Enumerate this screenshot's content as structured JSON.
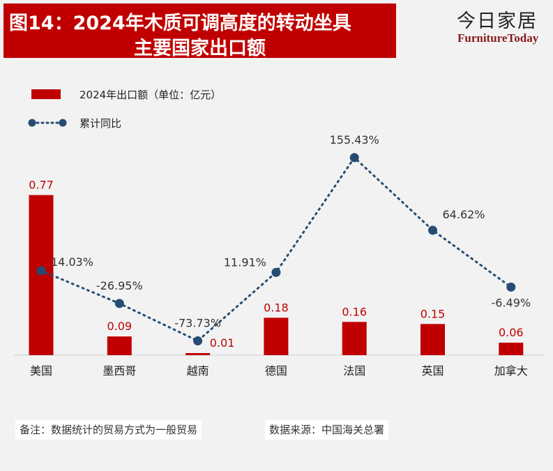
{
  "title": {
    "line1": "图14：2024年木质可调高度的转动坐具",
    "line2": "主要国家出口额"
  },
  "brand": {
    "name_cn": "今日家居",
    "name_en": "FurnitureToday"
  },
  "colors": {
    "bar": "#c00000",
    "line": "#264c73",
    "title_bg": "#c00000"
  },
  "chart_data": {
    "type": "bar",
    "categories": [
      "美国",
      "墨西哥",
      "越南",
      "德国",
      "法国",
      "英国",
      "加拿大"
    ],
    "series": [
      {
        "name": "2024年出口额（单位：亿元）",
        "type": "bar",
        "values": [
          0.77,
          0.09,
          0.01,
          0.18,
          0.16,
          0.15,
          0.06
        ],
        "labels": [
          "0.77",
          "0.09",
          "0.01",
          "0.18",
          "0.16",
          "0.15",
          "0.06"
        ]
      },
      {
        "name": "累计同比",
        "type": "line",
        "values": [
          14.03,
          -26.95,
          -73.73,
          11.91,
          155.43,
          64.62,
          -6.49
        ],
        "labels": [
          "14.03%",
          "-26.95%",
          "-73.73%",
          "11.91%",
          "155.43%",
          "64.62%",
          "-6.49%"
        ]
      }
    ],
    "title": "2024年木质可调高度的转动坐具主要国家出口额",
    "legend_position": "top-left"
  },
  "footer": {
    "note": "备注：数据统计的贸易方式为一般贸易",
    "source": "数据来源：中国海关总署"
  }
}
